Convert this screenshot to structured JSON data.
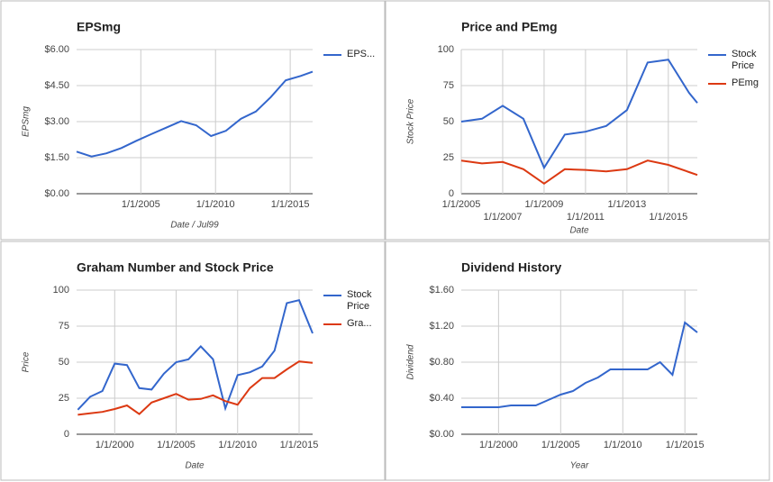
{
  "chart_data": [
    {
      "type": "line",
      "title": "EPSmg",
      "x_label": "Date / Jul99",
      "y_label": "EPSmg",
      "x": [
        2000.7,
        2001.7,
        2002.7,
        2003.7,
        2004.7,
        2005.7,
        2006.7,
        2007.7,
        2008.7,
        2009.7,
        2010.7,
        2011.7,
        2012.7,
        2013.7,
        2014.7,
        2015.7,
        2016.5
      ],
      "series": [
        {
          "name": "EPS...",
          "color": "#3366cc",
          "values": [
            1.75,
            1.55,
            1.68,
            1.9,
            2.2,
            2.48,
            2.75,
            3.02,
            2.85,
            2.4,
            2.62,
            3.12,
            3.42,
            4.02,
            4.72,
            4.9,
            5.08
          ]
        }
      ],
      "xlim": [
        2000.7,
        2016.5
      ],
      "ylim": [
        0,
        6
      ],
      "xticks": [
        {
          "value": 2005,
          "label": "1/1/2005"
        },
        {
          "value": 2010,
          "label": "1/1/2010"
        },
        {
          "value": 2015,
          "label": "1/1/2015"
        }
      ],
      "yticks": [
        {
          "value": 0,
          "label": "$0.00"
        },
        {
          "value": 1.5,
          "label": "$1.50"
        },
        {
          "value": 3,
          "label": "$3.00"
        },
        {
          "value": 4.5,
          "label": "$4.50"
        },
        {
          "value": 6,
          "label": "$6.00"
        }
      ],
      "grid": true,
      "legend": "right"
    },
    {
      "type": "line",
      "title": "Price and PEmg",
      "x_label": "Date",
      "y_label": "Stock Price",
      "x": [
        2005,
        2006,
        2007,
        2008,
        2009,
        2010,
        2011,
        2012,
        2013,
        2014,
        2015,
        2016,
        2016.4
      ],
      "series": [
        {
          "name": "Stock Price",
          "color": "#3366cc",
          "values": [
            50,
            52,
            61,
            52,
            18,
            41,
            43,
            47,
            58,
            91,
            93,
            70,
            63
          ]
        },
        {
          "name": "PEmg",
          "color": "#dc3912",
          "values": [
            23,
            21,
            22,
            17,
            7,
            17,
            16.5,
            15.5,
            17,
            23,
            20,
            15,
            13
          ]
        }
      ],
      "xlim": [
        2005,
        2016.4
      ],
      "ylim": [
        0,
        100
      ],
      "xticks": [
        {
          "value": 2005,
          "label": "1/1/2005"
        },
        {
          "value": 2007,
          "label": "1/1/2007"
        },
        {
          "value": 2009,
          "label": "1/1/2009"
        },
        {
          "value": 2011,
          "label": "1/1/2011"
        },
        {
          "value": 2013,
          "label": "1/1/2013"
        },
        {
          "value": 2015,
          "label": "1/1/2015"
        }
      ],
      "yticks": [
        0,
        25,
        50,
        75,
        100
      ],
      "grid": true,
      "legend": "right"
    },
    {
      "type": "line",
      "title": "Graham Number and Stock Price",
      "x_label": "Date",
      "y_label": "Price",
      "x": [
        1997,
        1998,
        1999,
        2000,
        2001,
        2002,
        2003,
        2004,
        2005,
        2006,
        2007,
        2008,
        2009,
        2010,
        2011,
        2012,
        2013,
        2014,
        2015,
        2016.1
      ],
      "series": [
        {
          "name": "Stock Price",
          "color": "#3366cc",
          "values": [
            17,
            26,
            30,
            49,
            48,
            32,
            31,
            42,
            50,
            52,
            61,
            52,
            18,
            41,
            43,
            47,
            58,
            91,
            93,
            70
          ]
        },
        {
          "name": "Gra...",
          "color": "#dc3912",
          "values": [
            13.5,
            14.5,
            15.5,
            17.5,
            20,
            14,
            22,
            25,
            28,
            24,
            24.5,
            27,
            23,
            20.5,
            32,
            39,
            39,
            45,
            50.5,
            49.5
          ]
        }
      ],
      "xlim": [
        1996.9,
        2016.1
      ],
      "ylim": [
        0,
        100
      ],
      "xticks": [
        {
          "value": 2000,
          "label": "1/1/2000"
        },
        {
          "value": 2005,
          "label": "1/1/2005"
        },
        {
          "value": 2010,
          "label": "1/1/2010"
        },
        {
          "value": 2015,
          "label": "1/1/2015"
        }
      ],
      "yticks": [
        0,
        25,
        50,
        75,
        100
      ],
      "grid": true,
      "legend": "right"
    },
    {
      "type": "line",
      "title": "Dividend History",
      "x_label": "Year",
      "y_label": "Dividend",
      "x": [
        1997,
        1998,
        1999,
        2000,
        2001,
        2002,
        2003,
        2004,
        2005,
        2006,
        2007,
        2008,
        2009,
        2010,
        2011,
        2012,
        2013,
        2014,
        2015,
        2016
      ],
      "series": [
        {
          "name": "Dividend",
          "color": "#3366cc",
          "values": [
            0.3,
            0.3,
            0.3,
            0.3,
            0.32,
            0.32,
            0.32,
            0.38,
            0.44,
            0.48,
            0.57,
            0.63,
            0.72,
            0.72,
            0.72,
            0.72,
            0.8,
            0.66,
            1.24,
            1.13
          ]
        }
      ],
      "xlim": [
        1997,
        2016
      ],
      "ylim": [
        0,
        1.6
      ],
      "xticks": [
        {
          "value": 2000,
          "label": "1/1/2000"
        },
        {
          "value": 2005,
          "label": "1/1/2005"
        },
        {
          "value": 2010,
          "label": "1/1/2010"
        },
        {
          "value": 2015,
          "label": "1/1/2015"
        }
      ],
      "yticks": [
        {
          "value": 0,
          "label": "$0.00"
        },
        {
          "value": 0.4,
          "label": "$0.40"
        },
        {
          "value": 0.8,
          "label": "$0.80"
        },
        {
          "value": 1.2,
          "label": "$1.20"
        },
        {
          "value": 1.6,
          "label": "$1.60"
        }
      ],
      "grid": true
    }
  ]
}
